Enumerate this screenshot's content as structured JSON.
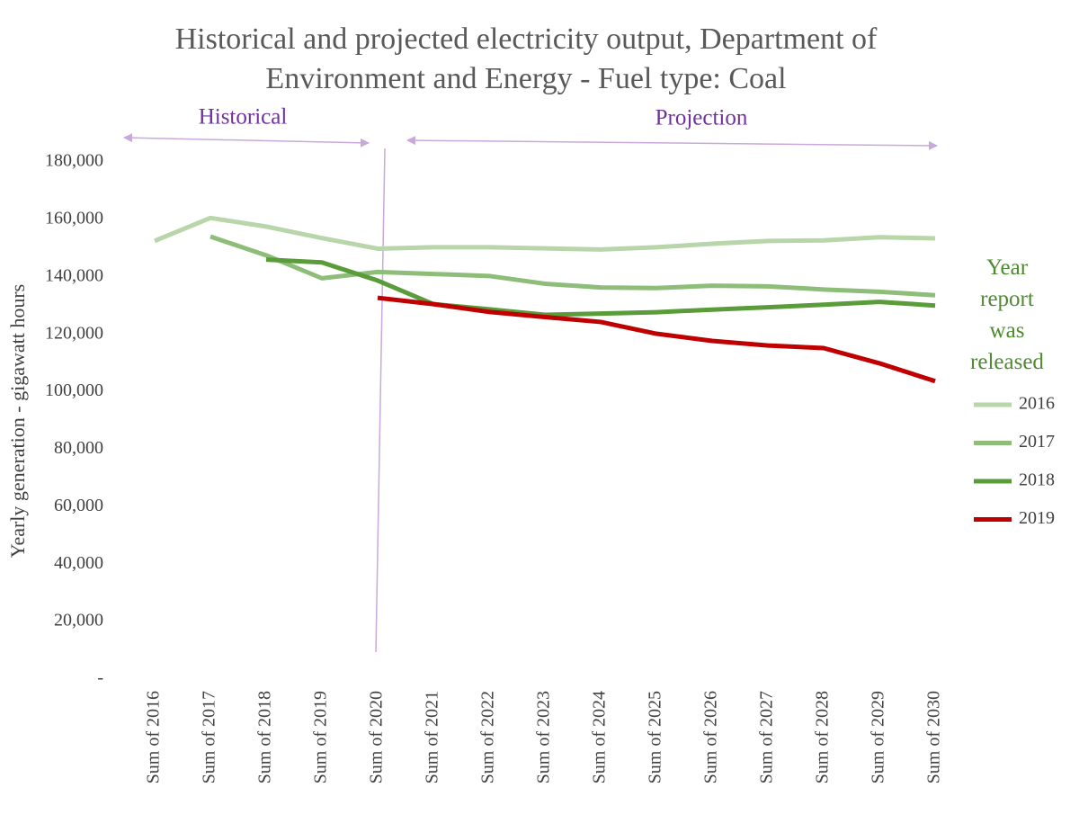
{
  "chart_data": {
    "type": "line",
    "title": "Historical and projected electricity output, Department of Environment and Energy - Fuel type: Coal",
    "y_label": "Yearly generation - gigawatt hours",
    "annotations": [
      "Historical",
      "Projection"
    ],
    "legend_title": "Year report was released",
    "categories": [
      "Sum of 2016",
      "Sum of 2017",
      "Sum of 2018",
      "Sum of 2019",
      "Sum of 2020",
      "Sum of 2021",
      "Sum of 2022",
      "Sum of 2023",
      "Sum of 2024",
      "Sum of 2025",
      "Sum of 2026",
      "Sum of 2027",
      "Sum of 2028",
      "Sum of 2029",
      "Sum of 2030"
    ],
    "series": [
      {
        "name": "2016",
        "color": "#b9d5aa",
        "values": [
          152500,
          160500,
          157500,
          153500,
          149800,
          150300,
          150300,
          149900,
          149500,
          150300,
          151500,
          152500,
          152700,
          153800,
          153400
        ]
      },
      {
        "name": "2017",
        "color": "#8dbd79",
        "values": [
          null,
          154000,
          147500,
          139500,
          141700,
          141000,
          140300,
          137600,
          136300,
          136100,
          136900,
          136700,
          135600,
          134800,
          133600
        ]
      },
      {
        "name": "2018",
        "color": "#5a9b3a",
        "values": [
          null,
          null,
          146000,
          145000,
          138700,
          130500,
          128700,
          126800,
          127200,
          127700,
          128600,
          129400,
          130300,
          131300,
          130000
        ]
      },
      {
        "name": "2019",
        "color": "#c00000",
        "values": [
          null,
          null,
          null,
          null,
          132700,
          130500,
          127800,
          126000,
          124300,
          120200,
          117700,
          116100,
          115200,
          109900,
          103700
        ]
      }
    ],
    "ylim": [
      0,
      180000
    ],
    "yticks": [
      {
        "value": 0,
        "label": "-"
      },
      {
        "value": 20000,
        "label": "20,000"
      },
      {
        "value": 40000,
        "label": "40,000"
      },
      {
        "value": 60000,
        "label": "60,000"
      },
      {
        "value": 80000,
        "label": "80,000"
      },
      {
        "value": 100000,
        "label": "100,000"
      },
      {
        "value": 120000,
        "label": "120,000"
      },
      {
        "value": 140000,
        "label": "140,000"
      },
      {
        "value": 160000,
        "label": "160,000"
      },
      {
        "value": 180000,
        "label": "180,000"
      }
    ],
    "grid": false,
    "legend": "right"
  }
}
